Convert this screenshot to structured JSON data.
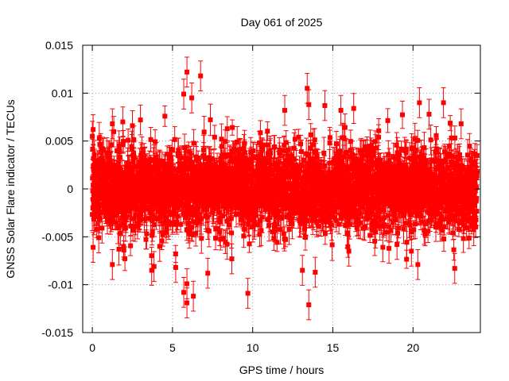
{
  "chart_data": {
    "type": "scatter",
    "title": "Day 061 of 2025",
    "xlabel": "GPS time / hours",
    "ylabel": "GNSS Solar Flare indicator / TECUs",
    "xlim": [
      -0.6,
      24.2
    ],
    "ylim": [
      -0.015,
      0.015
    ],
    "xticks": [
      0,
      5,
      10,
      15,
      20
    ],
    "xtick_labels": [
      "0",
      "5",
      "10",
      "15",
      "20"
    ],
    "yticks": [
      -0.015,
      -0.01,
      -0.005,
      0,
      0.005,
      0.01,
      0.015
    ],
    "ytick_labels": [
      "-0.015",
      "-0.01",
      "-0.005",
      "0",
      "0.005",
      "0.01",
      "0.015"
    ],
    "grid": true,
    "series": [
      {
        "color": "#ff0000",
        "marker": "square",
        "error_bars": true,
        "x_range": [
          0,
          24
        ],
        "approx_interval_hours": 0.0083,
        "typical_spread_tecu": 0.003,
        "typical_error_tecu": 0.0012,
        "points": [
          {
            "x": 0.0,
            "y": 0.0055
          },
          {
            "x": 0.05,
            "y": 0.0062
          },
          {
            "x": 0.05,
            "y": -0.0061
          },
          {
            "x": 0.4,
            "y": -0.0051
          },
          {
            "x": 1.25,
            "y": 0.0068
          },
          {
            "x": 1.25,
            "y": -0.0079
          },
          {
            "x": 1.9,
            "y": 0.007
          },
          {
            "x": 2.5,
            "y": 0.0066
          },
          {
            "x": 3.0,
            "y": 0.0072
          },
          {
            "x": 3.7,
            "y": -0.0085
          },
          {
            "x": 3.85,
            "y": -0.0081
          },
          {
            "x": 4.2,
            "y": -0.006
          },
          {
            "x": 5.2,
            "y": -0.0082
          },
          {
            "x": 5.7,
            "y": 0.0099
          },
          {
            "x": 5.7,
            "y": -0.0108
          },
          {
            "x": 5.9,
            "y": 0.0122
          },
          {
            "x": 5.9,
            "y": -0.0099
          },
          {
            "x": 5.9,
            "y": -0.0119
          },
          {
            "x": 6.2,
            "y": 0.0095
          },
          {
            "x": 6.3,
            "y": -0.0112
          },
          {
            "x": 6.75,
            "y": 0.0118
          },
          {
            "x": 7.2,
            "y": -0.0088
          },
          {
            "x": 8.7,
            "y": -0.0073
          },
          {
            "x": 9.7,
            "y": -0.0109
          },
          {
            "x": 12.0,
            "y": 0.0082
          },
          {
            "x": 13.1,
            "y": -0.0085
          },
          {
            "x": 13.4,
            "y": 0.0105
          },
          {
            "x": 13.5,
            "y": -0.0121
          },
          {
            "x": 13.5,
            "y": 0.0088
          },
          {
            "x": 13.9,
            "y": -0.0087
          },
          {
            "x": 14.5,
            "y": 0.0087
          },
          {
            "x": 15.5,
            "y": 0.0082
          },
          {
            "x": 16.0,
            "y": -0.0065
          },
          {
            "x": 16.3,
            "y": 0.0084
          },
          {
            "x": 18.5,
            "y": -0.0062
          },
          {
            "x": 19.0,
            "y": -0.0058
          },
          {
            "x": 19.9,
            "y": -0.0065
          },
          {
            "x": 20.3,
            "y": -0.0079
          },
          {
            "x": 20.4,
            "y": 0.009
          },
          {
            "x": 21.0,
            "y": 0.0078
          },
          {
            "x": 21.9,
            "y": 0.009
          },
          {
            "x": 22.6,
            "y": -0.0083
          },
          {
            "x": 23.0,
            "y": 0.0068
          }
        ]
      }
    ]
  }
}
